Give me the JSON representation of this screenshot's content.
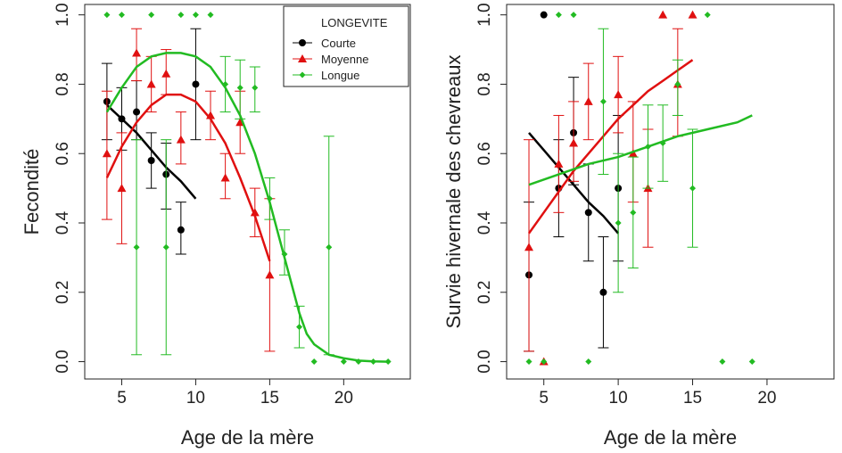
{
  "colors": {
    "Courte": "#000000",
    "Moyenne": "#e01010",
    "Longue": "#22bb22"
  },
  "legend": {
    "title": "LONGEVITE",
    "entries": [
      "Courte",
      "Moyenne",
      "Longue"
    ]
  },
  "chart_data": [
    {
      "type": "scatter",
      "xlabel": "Age de la mère",
      "ylabel": "Fecondité",
      "xlim": [
        2.5,
        24.5
      ],
      "ylim": [
        -0.05,
        1.03
      ],
      "xticks": [
        5,
        10,
        15,
        20
      ],
      "xtick_labels": [
        "5",
        "10",
        "15",
        "20"
      ],
      "yticks": [
        0.0,
        0.2,
        0.4,
        0.6,
        0.8,
        1.0
      ],
      "ytick_labels": [
        "0.0",
        "0.2",
        "0.4",
        "0.6",
        "0.8",
        "1.0"
      ],
      "legend_position": "top-right",
      "series": [
        {
          "name": "Courte",
          "marker": "circle",
          "points": [
            {
              "x": 4,
              "y": 0.75,
              "lo": 0.64,
              "hi": 0.86
            },
            {
              "x": 5,
              "y": 0.7,
              "lo": 0.61,
              "hi": 0.79
            },
            {
              "x": 6,
              "y": 0.72,
              "lo": 0.64,
              "hi": 0.81
            },
            {
              "x": 7,
              "y": 0.58,
              "lo": 0.5,
              "hi": 0.66
            },
            {
              "x": 8,
              "y": 0.54,
              "lo": 0.44,
              "hi": 0.63
            },
            {
              "x": 9,
              "y": 0.38,
              "lo": 0.31,
              "hi": 0.46
            },
            {
              "x": 10,
              "y": 0.8,
              "lo": 0.64,
              "hi": 0.96
            }
          ],
          "fit": [
            [
              4,
              0.74
            ],
            [
              5,
              0.7
            ],
            [
              6,
              0.66
            ],
            [
              7,
              0.61
            ],
            [
              8,
              0.56
            ],
            [
              9,
              0.52
            ],
            [
              10,
              0.47
            ]
          ]
        },
        {
          "name": "Moyenne",
          "marker": "triangle",
          "points": [
            {
              "x": 4,
              "y": 0.6,
              "lo": 0.41,
              "hi": 0.78
            },
            {
              "x": 5,
              "y": 0.5,
              "lo": 0.34,
              "hi": 0.66
            },
            {
              "x": 6,
              "y": 0.89,
              "lo": 0.81,
              "hi": 0.96
            },
            {
              "x": 7,
              "y": 0.8,
              "lo": 0.72,
              "hi": 0.88
            },
            {
              "x": 8,
              "y": 0.83,
              "lo": 0.77,
              "hi": 0.9
            },
            {
              "x": 9,
              "y": 0.64,
              "lo": 0.57,
              "hi": 0.72
            },
            {
              "x": 11,
              "y": 0.71,
              "lo": 0.64,
              "hi": 0.78
            },
            {
              "x": 12,
              "y": 0.53,
              "lo": 0.47,
              "hi": 0.6
            },
            {
              "x": 13,
              "y": 0.69,
              "lo": 0.6,
              "hi": 0.78
            },
            {
              "x": 14,
              "y": 0.43,
              "lo": 0.36,
              "hi": 0.5
            },
            {
              "x": 15,
              "y": 0.25,
              "lo": 0.03,
              "hi": 0.47
            }
          ],
          "fit": [
            [
              4,
              0.53
            ],
            [
              5,
              0.62
            ],
            [
              6,
              0.69
            ],
            [
              7,
              0.74
            ],
            [
              8,
              0.77
            ],
            [
              9,
              0.77
            ],
            [
              10,
              0.75
            ],
            [
              11,
              0.7
            ],
            [
              12,
              0.63
            ],
            [
              13,
              0.53
            ],
            [
              14,
              0.42
            ],
            [
              15,
              0.29
            ]
          ]
        },
        {
          "name": "Longue",
          "marker": "diamond",
          "points": [
            {
              "x": 4,
              "y": 1.0
            },
            {
              "x": 5,
              "y": 1.0
            },
            {
              "x": 6,
              "y": 0.33,
              "lo": 0.02,
              "hi": 0.64
            },
            {
              "x": 7,
              "y": 1.0
            },
            {
              "x": 8,
              "y": 0.33,
              "lo": 0.02,
              "hi": 0.64
            },
            {
              "x": 9,
              "y": 1.0
            },
            {
              "x": 10,
              "y": 1.0
            },
            {
              "x": 11,
              "y": 1.0
            },
            {
              "x": 12,
              "y": 0.8,
              "lo": 0.72,
              "hi": 0.88
            },
            {
              "x": 13,
              "y": 0.79,
              "lo": 0.7,
              "hi": 0.87
            },
            {
              "x": 14,
              "y": 0.79,
              "lo": 0.72,
              "hi": 0.85
            },
            {
              "x": 15,
              "y": 0.47,
              "lo": 0.41,
              "hi": 0.53
            },
            {
              "x": 16,
              "y": 0.31,
              "lo": 0.25,
              "hi": 0.38
            },
            {
              "x": 17,
              "y": 0.1,
              "lo": 0.04,
              "hi": 0.16
            },
            {
              "x": 18,
              "y": 0.0
            },
            {
              "x": 19,
              "y": 0.33,
              "lo": 0.02,
              "hi": 0.65
            },
            {
              "x": 20,
              "y": 0.0
            },
            {
              "x": 21,
              "y": 0.0
            },
            {
              "x": 22,
              "y": 0.0
            },
            {
              "x": 23,
              "y": 0.0
            }
          ],
          "fit": [
            [
              4,
              0.72
            ],
            [
              5,
              0.79
            ],
            [
              6,
              0.85
            ],
            [
              7,
              0.88
            ],
            [
              8,
              0.89
            ],
            [
              9,
              0.89
            ],
            [
              10,
              0.88
            ],
            [
              11,
              0.85
            ],
            [
              12,
              0.79
            ],
            [
              13,
              0.71
            ],
            [
              14,
              0.6
            ],
            [
              15,
              0.46
            ],
            [
              16,
              0.3
            ],
            [
              17,
              0.14
            ],
            [
              17.5,
              0.08
            ],
            [
              18,
              0.05
            ],
            [
              19,
              0.02
            ],
            [
              20,
              0.01
            ],
            [
              21,
              0.003
            ],
            [
              22,
              0.001
            ],
            [
              23,
              0.0
            ]
          ]
        }
      ]
    },
    {
      "type": "scatter",
      "xlabel": "Age de la mère",
      "ylabel": "Survie hivernale des chevreaux",
      "xlim": [
        2.5,
        24.5
      ],
      "ylim": [
        -0.05,
        1.03
      ],
      "xticks": [
        5,
        10,
        15,
        20
      ],
      "xtick_labels": [
        "5",
        "10",
        "15",
        "20"
      ],
      "yticks": [
        0.0,
        0.2,
        0.4,
        0.6,
        0.8,
        1.0
      ],
      "ytick_labels": [
        "0.0",
        "0.2",
        "0.4",
        "0.6",
        "0.8",
        "1.0"
      ],
      "series": [
        {
          "name": "Courte",
          "marker": "circle",
          "points": [
            {
              "x": 4,
              "y": 0.25,
              "lo": 0.03,
              "hi": 0.46
            },
            {
              "x": 5,
              "y": 1.0
            },
            {
              "x": 6,
              "y": 0.5,
              "lo": 0.36,
              "hi": 0.64
            },
            {
              "x": 7,
              "y": 0.66,
              "lo": 0.51,
              "hi": 0.82
            },
            {
              "x": 8,
              "y": 0.43,
              "lo": 0.29,
              "hi": 0.57
            },
            {
              "x": 9,
              "y": 0.2,
              "lo": 0.04,
              "hi": 0.36
            },
            {
              "x": 10,
              "y": 0.5,
              "lo": 0.29,
              "hi": 0.71
            }
          ],
          "fit": [
            [
              4,
              0.66
            ],
            [
              5,
              0.61
            ],
            [
              6,
              0.56
            ],
            [
              7,
              0.51
            ],
            [
              8,
              0.46
            ],
            [
              9,
              0.42
            ],
            [
              10,
              0.37
            ]
          ]
        },
        {
          "name": "Moyenne",
          "marker": "triangle",
          "points": [
            {
              "x": 4,
              "y": 0.33,
              "lo": 0.03,
              "hi": 0.64
            },
            {
              "x": 5,
              "y": 0.0
            },
            {
              "x": 6,
              "y": 0.57,
              "lo": 0.43,
              "hi": 0.71
            },
            {
              "x": 7,
              "y": 0.63,
              "lo": 0.52,
              "hi": 0.75
            },
            {
              "x": 8,
              "y": 0.75,
              "lo": 0.64,
              "hi": 0.86
            },
            {
              "x": 10,
              "y": 0.77,
              "lo": 0.66,
              "hi": 0.88
            },
            {
              "x": 11,
              "y": 0.6,
              "lo": 0.46,
              "hi": 0.75
            },
            {
              "x": 12,
              "y": 0.5,
              "lo": 0.33,
              "hi": 0.67
            },
            {
              "x": 13,
              "y": 1.0
            },
            {
              "x": 14,
              "y": 0.8,
              "lo": 0.65,
              "hi": 0.96
            },
            {
              "x": 15,
              "y": 1.0
            }
          ],
          "fit": [
            [
              4,
              0.37
            ],
            [
              5,
              0.43
            ],
            [
              6,
              0.49
            ],
            [
              7,
              0.55
            ],
            [
              8,
              0.6
            ],
            [
              9,
              0.65
            ],
            [
              10,
              0.7
            ],
            [
              11,
              0.74
            ],
            [
              12,
              0.78
            ],
            [
              13,
              0.81
            ],
            [
              14,
              0.84
            ],
            [
              15,
              0.87
            ]
          ]
        },
        {
          "name": "Longue",
          "marker": "diamond",
          "points": [
            {
              "x": 4,
              "y": 0.0
            },
            {
              "x": 5,
              "y": 0.0
            },
            {
              "x": 6,
              "y": 1.0
            },
            {
              "x": 7,
              "y": 1.0
            },
            {
              "x": 8,
              "y": 0.0
            },
            {
              "x": 9,
              "y": 0.75,
              "lo": 0.54,
              "hi": 0.96
            },
            {
              "x": 10,
              "y": 0.4,
              "lo": 0.2,
              "hi": 0.6
            },
            {
              "x": 11,
              "y": 0.43,
              "lo": 0.27,
              "hi": 0.59
            },
            {
              "x": 12,
              "y": 0.62,
              "lo": 0.5,
              "hi": 0.74
            },
            {
              "x": 13,
              "y": 0.63,
              "lo": 0.52,
              "hi": 0.74
            },
            {
              "x": 14,
              "y": 0.8,
              "lo": 0.71,
              "hi": 0.87
            },
            {
              "x": 15,
              "y": 0.5,
              "lo": 0.33,
              "hi": 0.67
            },
            {
              "x": 16,
              "y": 1.0
            },
            {
              "x": 17,
              "y": 0.0
            },
            {
              "x": 19,
              "y": 0.0
            }
          ],
          "fit": [
            [
              4,
              0.51
            ],
            [
              6,
              0.54
            ],
            [
              8,
              0.57
            ],
            [
              10,
              0.59
            ],
            [
              12,
              0.62
            ],
            [
              14,
              0.65
            ],
            [
              16,
              0.67
            ],
            [
              18,
              0.69
            ],
            [
              19,
              0.71
            ]
          ]
        }
      ]
    }
  ]
}
